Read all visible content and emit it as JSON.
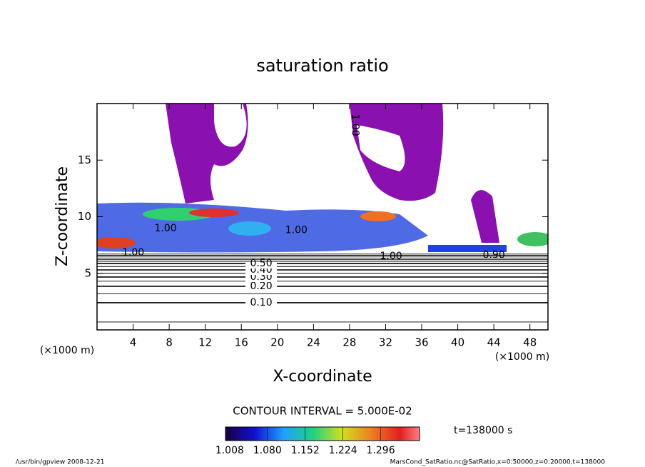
{
  "chart_data": {
    "type": "contour",
    "title": "saturation ratio",
    "x_label": "X-coordinate",
    "y_label": "Z-coordinate",
    "x_unit": "(×1000 m)",
    "y_unit": "(×1000 m)",
    "xlim": [
      0,
      50
    ],
    "ylim": [
      0,
      20
    ],
    "xticks": [
      4,
      8,
      12,
      16,
      20,
      24,
      28,
      32,
      36,
      40,
      44,
      48
    ],
    "yticks": [
      5,
      10,
      15
    ],
    "contour_interval": "CONTOUR INTERVAL = 5.000E-02",
    "contours": [
      {
        "level": 0.05,
        "z": 0.7
      },
      {
        "level": 0.1,
        "label": "0.10",
        "z": 2.4
      },
      {
        "level": 0.15,
        "z": 3.2
      },
      {
        "level": 0.2,
        "label": "0.20",
        "z": 3.85
      },
      {
        "level": 0.25,
        "z": 4.3
      },
      {
        "level": 0.3,
        "label": "0.30",
        "z": 4.67
      },
      {
        "level": 0.35,
        "z": 5.0
      },
      {
        "level": 0.4,
        "label": "0.40",
        "z": 5.3
      },
      {
        "level": 0.45,
        "z": 5.6
      },
      {
        "level": 0.5,
        "label": "0.50",
        "z": 5.87
      },
      {
        "level": 0.55,
        "z": 6.05
      },
      {
        "level": 0.6,
        "z": 6.2
      },
      {
        "level": 0.65,
        "z": 6.35
      },
      {
        "level": 0.7,
        "z": 6.5
      },
      {
        "level": 0.75,
        "z": 6.6
      },
      {
        "level": 0.8,
        "z": 6.7
      }
    ],
    "contour_labels": [
      {
        "label": "1.00",
        "x": 7.6,
        "z": 8.95
      },
      {
        "label": "1.00",
        "x": 4,
        "z": 6.8
      },
      {
        "label": "1.00",
        "x": 22.1,
        "z": 8.8
      },
      {
        "label": "1.00",
        "x": 32.6,
        "z": 6.5
      },
      {
        "label": "0.90",
        "x": 44,
        "z": 6.6
      },
      {
        "label": "1.00",
        "x": 28.6,
        "z": 18.1
      }
    ],
    "colorbar": {
      "lim": [
        1.0,
        1.37
      ],
      "ticks": [
        1.008,
        {
          "value": 1.08,
          "label": "1.080"
        },
        1.152,
        1.224,
        1.296
      ]
    },
    "time_label": "t=138000 s",
    "footer_left": "/usr/bin/gpview   2008-12-21",
    "footer_right": "MarsCond_SatRatio.nc@SatRatio,x=0:50000,z=0:20000,t=138000"
  }
}
